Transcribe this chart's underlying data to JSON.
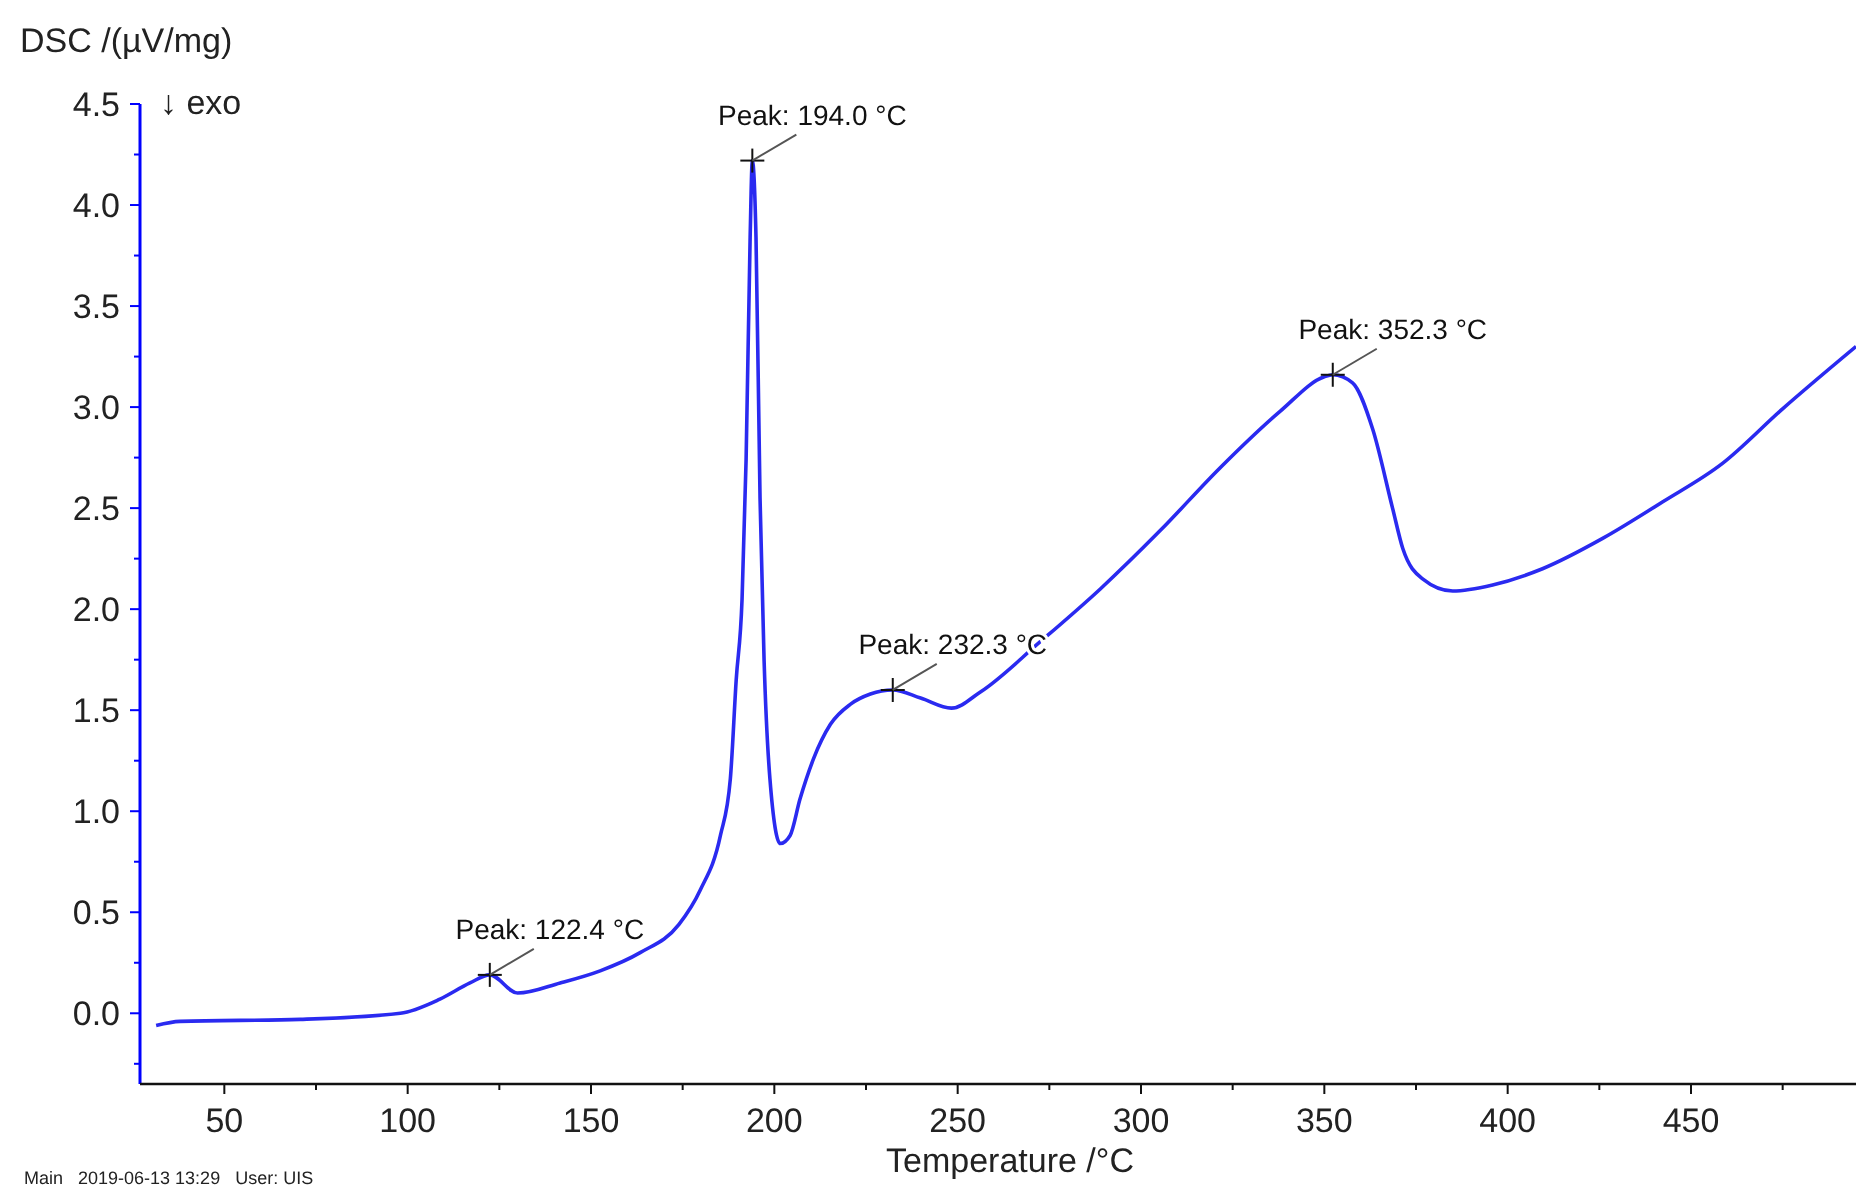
{
  "chart_data": {
    "type": "line",
    "xlabel": "Temperature /°C",
    "ylabel": "DSC /(µV/mg)",
    "xlim": [
      27,
      495
    ],
    "ylim": [
      -0.35,
      4.5
    ],
    "xticks": [
      50,
      {
        "value": 75,
        "label": null
      },
      100,
      {
        "value": 125,
        "label": null
      },
      150,
      {
        "value": 175,
        "label": null
      },
      200,
      {
        "value": 225,
        "label": null
      },
      250,
      {
        "value": 275,
        "label": null
      },
      300,
      {
        "value": 325,
        "label": null
      },
      350,
      {
        "value": 375,
        "label": null
      },
      400,
      {
        "value": 425,
        "label": null
      },
      450,
      {
        "value": 475,
        "label": null
      }
    ],
    "yticks": [
      {
        "value": -0.25,
        "label": null
      },
      {
        "value": 0,
        "label": "0.0"
      },
      {
        "value": 0.25,
        "label": null
      },
      0.5,
      {
        "value": 0.75,
        "label": null
      },
      {
        "value": 1,
        "label": "1.0"
      },
      {
        "value": 1.25,
        "label": null
      },
      1.5,
      {
        "value": 1.75,
        "label": null
      },
      {
        "value": 2,
        "label": "2.0"
      },
      {
        "value": 2.25,
        "label": null
      },
      2.5,
      {
        "value": 2.75,
        "label": null
      },
      {
        "value": 3,
        "label": "3.0"
      },
      {
        "value": 3.25,
        "label": null
      },
      3.5,
      {
        "value": 3.75,
        "label": null
      },
      {
        "value": 4,
        "label": "4.0"
      },
      {
        "value": 4.25,
        "label": null
      },
      4.5
    ],
    "grid": false,
    "marker": "none",
    "line_style": "solid",
    "series": [
      {
        "color": "#2a2af0",
        "x": [
          31.4,
          37.9,
          70.7,
          98,
          108.8,
          117,
          122.4,
          130,
          141.6,
          152.5,
          163.4,
          174,
          179.8,
          185.3,
          188,
          189.6,
          191.2,
          192.3,
          193.4,
          194,
          195,
          196.1,
          197.2,
          198.8,
          201.6,
          204.3,
          207,
          210.7,
          215.3,
          220.8,
          226.2,
          232.3,
          239.9,
          248.3,
          256.2,
          272.6,
          288.9,
          305.3,
          321.6,
          338,
          350,
          352.3,
          357.7,
          363.2,
          368.6,
          371.4,
          376.8,
          385,
          395.9,
          409.5,
          425.9,
          442.2,
          458.5,
          474.9,
          495
        ],
        "values": [
          -0.06,
          -0.04,
          -0.03,
          0.0,
          0.07,
          0.15,
          0.19,
          0.1,
          0.15,
          0.21,
          0.3,
          0.44,
          0.61,
          0.88,
          1.16,
          1.65,
          2.05,
          2.74,
          3.84,
          4.22,
          3.84,
          2.55,
          1.75,
          1.16,
          0.84,
          0.88,
          1.06,
          1.26,
          1.43,
          1.53,
          1.58,
          1.6,
          1.56,
          1.51,
          1.59,
          1.84,
          2.1,
          2.39,
          2.7,
          2.98,
          3.15,
          3.16,
          3.12,
          2.89,
          2.5,
          2.3,
          2.15,
          2.09,
          2.12,
          2.2,
          2.35,
          2.53,
          2.72,
          2.99,
          3.3
        ]
      }
    ],
    "annotations": [
      {
        "text": "Peak: 122.4 °C",
        "x": 122.4,
        "y": 0.19
      },
      {
        "text": "Peak: 194.0 °C",
        "x": 194.0,
        "y": 4.22
      },
      {
        "text": "Peak: 232.3 °C",
        "x": 232.3,
        "y": 1.6
      },
      {
        "text": "Peak: 352.3 °C",
        "x": 352.3,
        "y": 3.16
      },
      "↓ exo",
      "Main   2019-06-13 13:29   User: UIS"
    ]
  }
}
